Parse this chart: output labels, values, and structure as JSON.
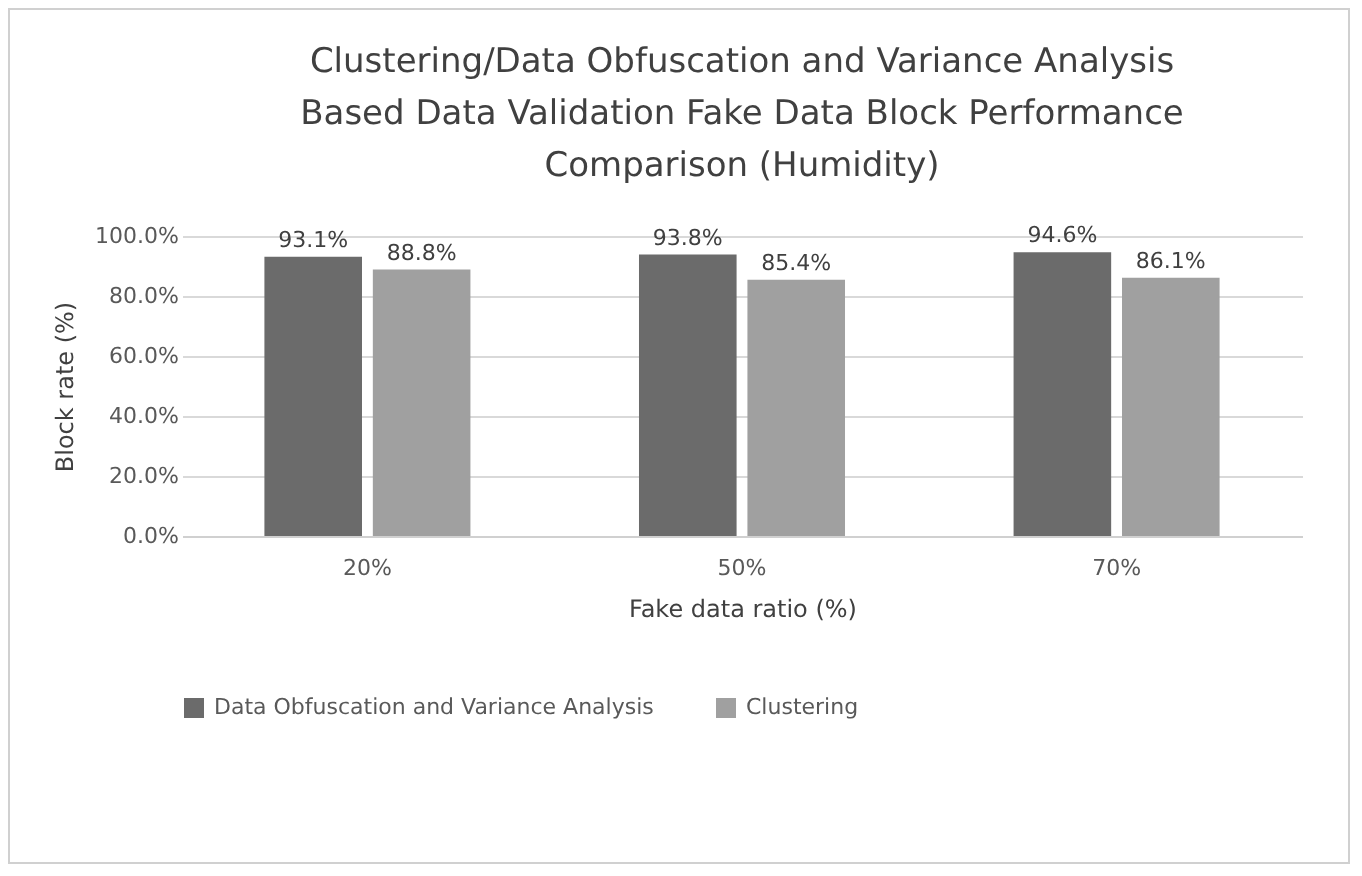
{
  "chart_data": {
    "type": "bar",
    "title": "Clustering/Data Obfuscation and Variance Analysis Based Data Validation Fake Data Block Performance Comparison (Humidity)",
    "xlabel": "Fake data ratio (%)",
    "ylabel": "Block rate (%)",
    "categories": [
      "20%",
      "50%",
      "70%"
    ],
    "series": [
      {
        "name": "Data Obfuscation and Variance Analysis",
        "color": "#6b6b6b",
        "values": [
          93.1,
          93.8,
          94.6
        ],
        "value_labels": [
          "93.1%",
          "93.8%",
          "94.6%"
        ]
      },
      {
        "name": "Clustering",
        "color": "#a0a0a0",
        "values": [
          88.8,
          85.4,
          86.1
        ],
        "value_labels": [
          "88.8%",
          "85.4%",
          "86.1%"
        ]
      }
    ],
    "ylim": [
      0,
      100
    ],
    "yticks": [
      {
        "value": 0,
        "label": "0.0%"
      },
      {
        "value": 20,
        "label": "20.0%"
      },
      {
        "value": 40,
        "label": "40.0%"
      },
      {
        "value": 60,
        "label": "60.0%"
      },
      {
        "value": 80,
        "label": "80.0%"
      },
      {
        "value": 100,
        "label": "100.0%"
      }
    ],
    "grid": "y",
    "legend": "bottom"
  }
}
